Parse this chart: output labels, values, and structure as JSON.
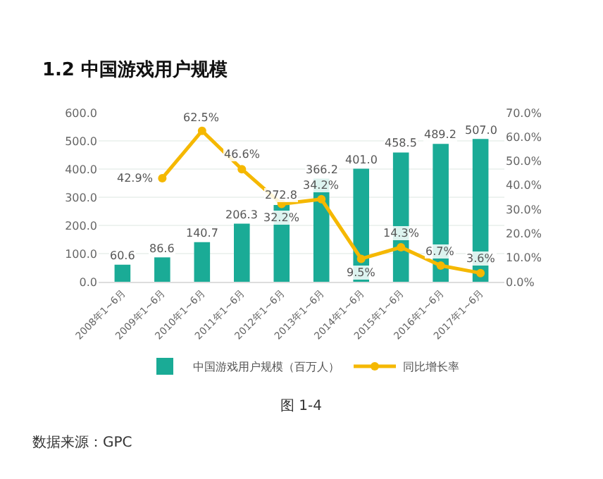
{
  "chart_data": {
    "type": "bar",
    "title": "1.2 中国游戏用户规模",
    "annotations": [
      "图 1-4",
      "数据来源：GPC"
    ],
    "categories": [
      "2008年1~6月",
      "2009年1~6月",
      "2010年1~6月",
      "2011年1~6月",
      "2012年1~6月",
      "2013年1~6月",
      "2014年1~6月",
      "2015年1~6月",
      "2016年1~6月",
      "2017年1~6月"
    ],
    "series": [
      {
        "name": "中国游戏用户规模（百万人）",
        "color": "#1aab96",
        "values": [
          60.6,
          86.6,
          140.7,
          206.3,
          272.8,
          366.2,
          401.0,
          458.5,
          489.2,
          507.0
        ],
        "value_labels": [
          "60.6",
          "86.6",
          "140.7",
          "206.3",
          "272.8",
          "366.2",
          "401.0",
          "458.5",
          "489.2",
          "507.0"
        ]
      },
      {
        "name": "同比增长率",
        "type": "line",
        "axis": "y2",
        "color": "#f5b800",
        "marker": "circle",
        "values": [
          null,
          42.9,
          62.5,
          46.6,
          32.2,
          34.2,
          9.5,
          14.3,
          6.7,
          3.6
        ],
        "value_labels": [
          null,
          "42.9%",
          "62.5%",
          "46.6%",
          "32.2%",
          "34.2%",
          "9.5%",
          "14.3%",
          "6.7%",
          "3.6%"
        ]
      }
    ],
    "ylim": [
      0,
      600
    ],
    "yticks": [
      {
        "value": 0,
        "label": "0.0"
      },
      {
        "value": 100,
        "label": "100.0"
      },
      {
        "value": 200,
        "label": "200.0"
      },
      {
        "value": 300,
        "label": "300.0"
      },
      {
        "value": 400,
        "label": "400.0"
      },
      {
        "value": 500,
        "label": "500.0"
      },
      {
        "value": 600,
        "label": "600.0"
      }
    ],
    "y2lim": [
      0,
      70
    ],
    "y2ticks": [
      {
        "value": 0,
        "label": "0.0%"
      },
      {
        "value": 10,
        "label": "10.0%"
      },
      {
        "value": 20,
        "label": "20.0%"
      },
      {
        "value": 30,
        "label": "30.0%"
      },
      {
        "value": 40,
        "label": "40.0%"
      },
      {
        "value": 50,
        "label": "50.0%"
      },
      {
        "value": 60,
        "label": "60.0%"
      },
      {
        "value": 70,
        "label": "70.0%"
      }
    ],
    "grid": "y",
    "legend": "bottom"
  }
}
